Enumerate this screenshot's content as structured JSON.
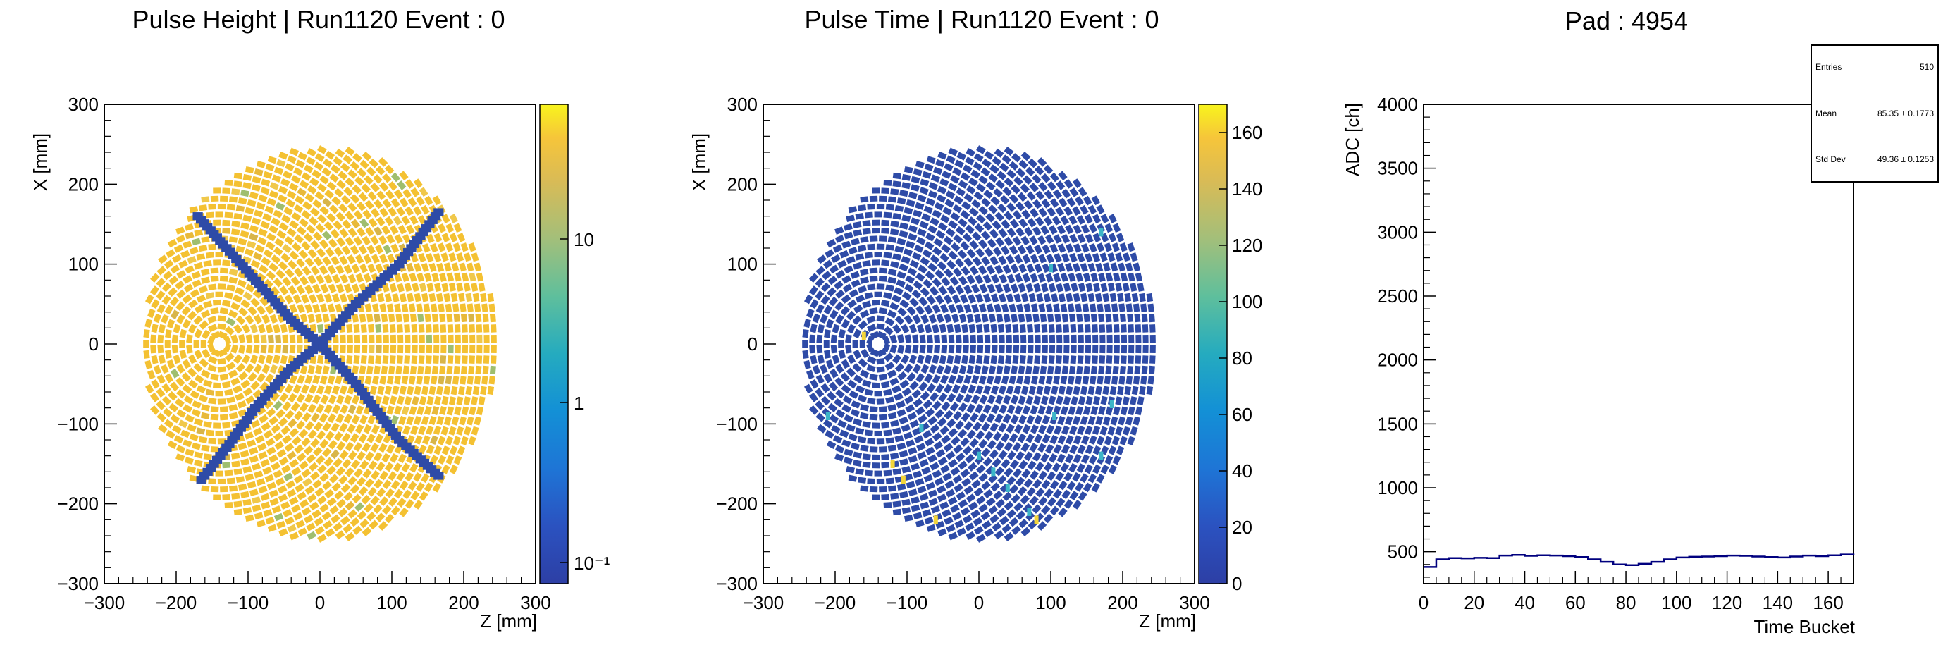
{
  "panels": [
    {
      "title": "Pulse Height | Run1120 Event : 0",
      "xlabel": "Z [mm]",
      "ylabel": "X [mm]",
      "x_ticks": [
        "−300",
        "−200",
        "−100",
        "0",
        "100",
        "200",
        "300"
      ],
      "y_ticks": [
        "−300",
        "−200",
        "−100",
        "0",
        "100",
        "200",
        "300"
      ],
      "colorbar_ticks": [
        "10",
        "1",
        "10⁻¹"
      ]
    },
    {
      "title": "Pulse Time | Run1120 Event : 0",
      "xlabel": "Z [mm]",
      "ylabel": "X [mm]",
      "x_ticks": [
        "−300",
        "−200",
        "−100",
        "0",
        "100",
        "200",
        "300"
      ],
      "y_ticks": [
        "−300",
        "−200",
        "−100",
        "0",
        "100",
        "200",
        "300"
      ],
      "colorbar_ticks": [
        "160",
        "140",
        "120",
        "100",
        "80",
        "60",
        "40",
        "20",
        "0"
      ]
    },
    {
      "title": "Pad : 4954",
      "xlabel": "Time Bucket",
      "ylabel": "ADC [ch]",
      "x_ticks": [
        "0",
        "20",
        "40",
        "60",
        "80",
        "100",
        "120",
        "140",
        "160"
      ],
      "y_ticks": [
        "4000",
        "3500",
        "3000",
        "2500",
        "2000",
        "1500",
        "1000",
        "500"
      ],
      "stats": [
        {
          "label": "Entries",
          "value": "510"
        },
        {
          "label": "Mean",
          "value": "85.35 ± 0.1773"
        },
        {
          "label": "Std Dev",
          "value": "49.36 ± 0.1253"
        }
      ]
    }
  ],
  "chart_data": [
    {
      "type": "heatmap",
      "title": "Pulse Height | Run1120 Event : 0",
      "xlabel": "Z [mm]",
      "ylabel": "X [mm]",
      "xlim": [
        -300,
        300
      ],
      "ylim": [
        -300,
        300
      ],
      "colorscale": "log",
      "zlim": [
        0.07,
        50
      ],
      "background_level": "~30 (yellow)",
      "hole": {
        "z": -140,
        "x": 0
      },
      "tracks": [
        {
          "name": "",
          "points": [
            [
              -170,
              160
            ],
            [
              -130,
              120
            ],
            [
              -80,
              70
            ],
            [
              -40,
              30
            ],
            [
              0,
              0
            ]
          ]
        },
        {
          "name": "",
          "points": [
            [
              0,
              0
            ],
            [
              -40,
              -30
            ],
            [
              -90,
              -80
            ],
            [
              -130,
              -130
            ],
            [
              -165,
              -170
            ]
          ]
        },
        {
          "name": "",
          "points": [
            [
              0,
              0
            ],
            [
              50,
              50
            ],
            [
              110,
              100
            ],
            [
              165,
              165
            ]
          ]
        },
        {
          "name": "",
          "points": [
            [
              0,
              0
            ],
            [
              50,
              -50
            ],
            [
              110,
              -120
            ],
            [
              165,
              -165
            ]
          ]
        }
      ]
    },
    {
      "type": "heatmap",
      "title": "Pulse Time | Run1120 Event : 0",
      "xlabel": "Z [mm]",
      "ylabel": "X [mm]",
      "xlim": [
        -300,
        300
      ],
      "ylim": [
        -300,
        300
      ],
      "zlim": [
        0,
        170
      ],
      "background_level": "~0 (blue)",
      "hole": {
        "z": -140,
        "x": 0
      }
    },
    {
      "type": "line",
      "title": "Pad : 4954",
      "xlabel": "Time Bucket",
      "ylabel": "ADC [ch]",
      "xlim": [
        0,
        170
      ],
      "ylim": [
        250,
        4000
      ],
      "x": [
        0,
        5,
        10,
        15,
        20,
        25,
        30,
        35,
        40,
        45,
        50,
        55,
        60,
        65,
        70,
        75,
        80,
        85,
        90,
        95,
        100,
        105,
        110,
        115,
        120,
        125,
        130,
        135,
        140,
        145,
        150,
        155,
        160,
        165,
        170
      ],
      "values": [
        380,
        440,
        450,
        448,
        452,
        450,
        470,
        475,
        468,
        472,
        470,
        465,
        458,
        440,
        420,
        400,
        395,
        405,
        420,
        440,
        455,
        460,
        462,
        465,
        470,
        468,
        462,
        458,
        455,
        462,
        470,
        465,
        472,
        478,
        475
      ]
    }
  ],
  "colors": {
    "axis": "#000000",
    "track_blue": "#2e4ba7",
    "pad_yellow": "#f4c132",
    "hist_line": "#00007f"
  }
}
